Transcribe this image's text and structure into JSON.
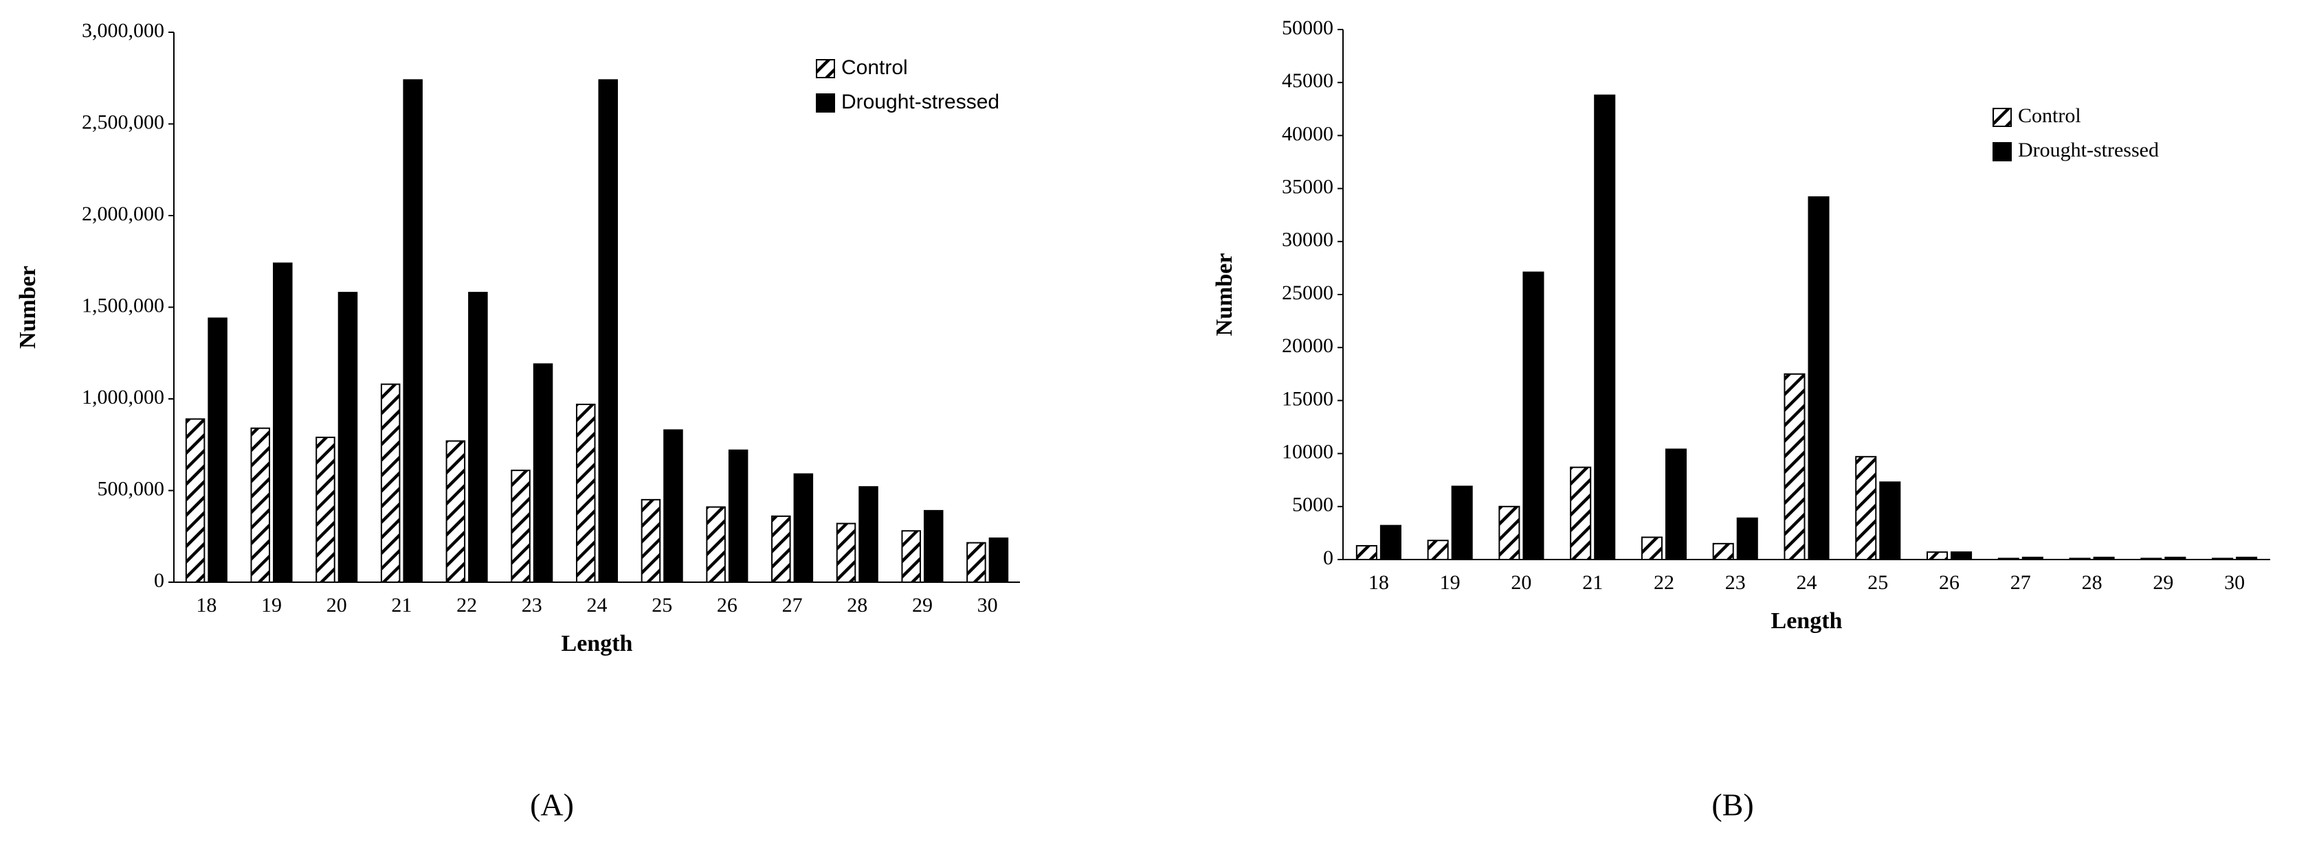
{
  "chart_data": [
    {
      "type": "bar",
      "panel_label": "(A)",
      "x_label": "Length",
      "y_label": "Number",
      "categories": [
        "18",
        "19",
        "20",
        "21",
        "22",
        "23",
        "24",
        "25",
        "26",
        "27",
        "28",
        "29",
        "30"
      ],
      "series": [
        {
          "name": "Control",
          "color": "#000000",
          "hatch": true,
          "values": [
            890000,
            840000,
            790000,
            1080000,
            770000,
            610000,
            970000,
            450000,
            410000,
            360000,
            320000,
            280000,
            215000
          ]
        },
        {
          "name": "Drought-stressed",
          "color": "#000000",
          "hatch": false,
          "values": [
            1440000,
            1740000,
            1580000,
            2740000,
            1580000,
            1190000,
            2740000,
            830000,
            720000,
            590000,
            520000,
            390000,
            240000
          ]
        }
      ],
      "ylim": [
        0,
        3000000
      ],
      "yticks": [
        0,
        {
          "value": 500000,
          "label": "500,000"
        },
        {
          "value": 1000000,
          "label": "1,000,000"
        },
        {
          "value": 1500000,
          "label": "1,500,000"
        },
        {
          "value": 2000000,
          "label": "2,000,000"
        },
        {
          "value": 2500000,
          "label": "2,500,000"
        },
        {
          "value": 3000000,
          "label": "3,000,000"
        }
      ],
      "grid": false,
      "legend": "upper right"
    },
    {
      "type": "bar",
      "panel_label": "(B)",
      "x_label": "Length",
      "y_label": "Number",
      "categories": [
        "18",
        "19",
        "20",
        "21",
        "22",
        "23",
        "24",
        "25",
        "26",
        "27",
        "28",
        "29",
        "30"
      ],
      "series": [
        {
          "name": "Control",
          "color": "#000000",
          "hatch": true,
          "values": [
            1300,
            1800,
            5000,
            8700,
            2100,
            1500,
            17500,
            9700,
            700,
            100,
            100,
            100,
            100
          ]
        },
        {
          "name": "Drought-stressed",
          "color": "#000000",
          "hatch": false,
          "values": [
            3200,
            6900,
            27100,
            43800,
            10400,
            3900,
            34200,
            7300,
            700,
            200,
            200,
            200,
            200
          ]
        }
      ],
      "ylim": [
        0,
        50000
      ],
      "yticks": [
        0,
        5000,
        10000,
        15000,
        20000,
        25000,
        30000,
        35000,
        40000,
        45000,
        50000
      ],
      "grid": false,
      "legend": "upper right"
    }
  ]
}
